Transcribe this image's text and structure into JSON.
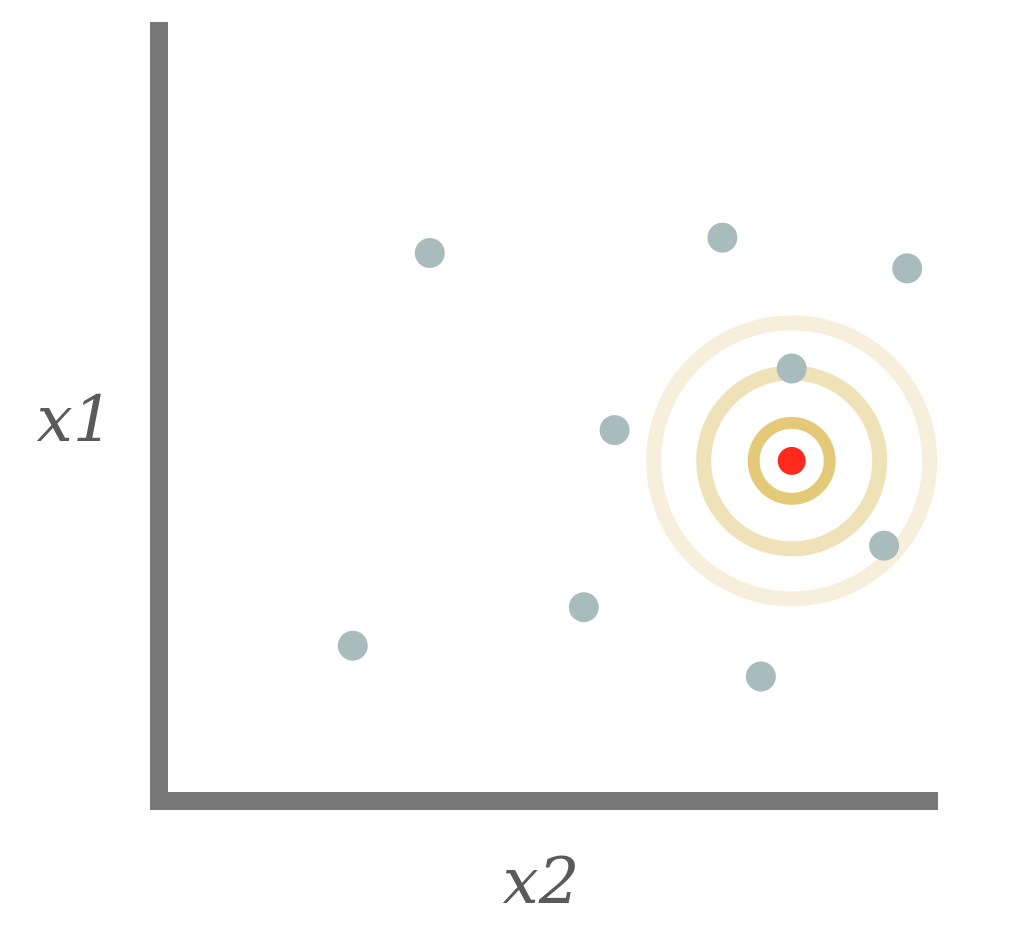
{
  "axes": {
    "x_label": "x2",
    "y_label": "x1",
    "color": "#777877"
  },
  "colors": {
    "point": "#a8bcbc",
    "query_point": "#ff2a1e",
    "ring_inner": "#e3c978",
    "ring_middle": "#f0e2b8",
    "ring_outer": "#f7eedb"
  },
  "chart_data": {
    "type": "scatter",
    "xlabel": "x2",
    "ylabel": "x1",
    "xlim": [
      0,
      100
    ],
    "ylim": [
      0,
      100
    ],
    "points": [
      {
        "x": 34,
        "y": 70
      },
      {
        "x": 72,
        "y": 72
      },
      {
        "x": 96,
        "y": 68
      },
      {
        "x": 81,
        "y": 55
      },
      {
        "x": 58,
        "y": 47
      },
      {
        "x": 93,
        "y": 32
      },
      {
        "x": 54,
        "y": 24
      },
      {
        "x": 24,
        "y": 19
      },
      {
        "x": 77,
        "y": 15
      }
    ],
    "query_point": {
      "x": 81,
      "y": 43
    },
    "rings": [
      {
        "level": "inner"
      },
      {
        "level": "middle"
      },
      {
        "level": "outer"
      }
    ]
  }
}
